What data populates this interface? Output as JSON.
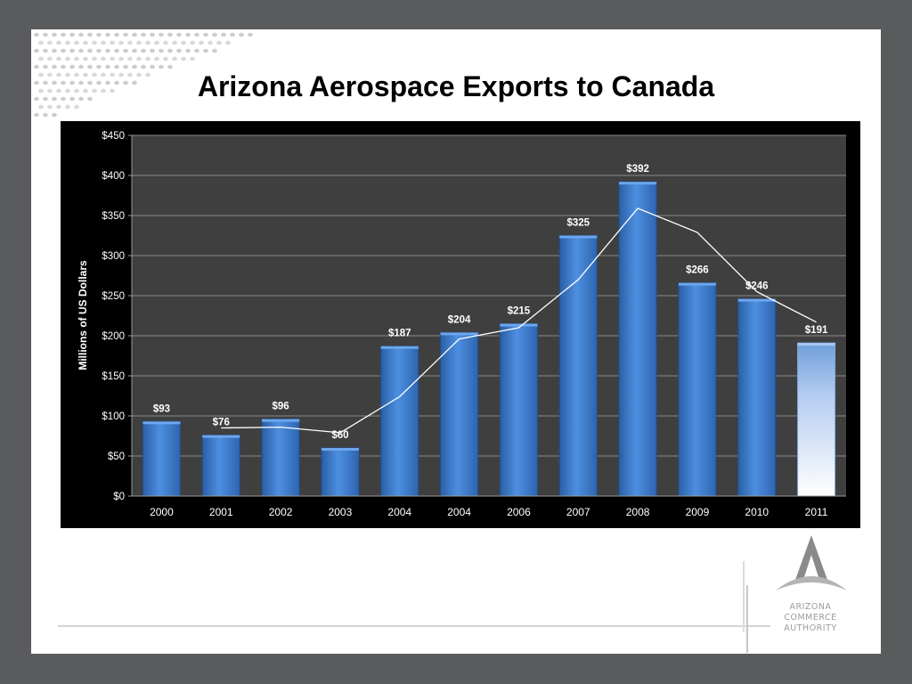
{
  "slide": {
    "title": "Arizona Aerospace Exports to Canada"
  },
  "logo": {
    "lines": [
      "ARIZONA",
      "COMMERCE",
      "AUTHORITY"
    ]
  },
  "colors": {
    "frame": "#5a5b5d",
    "chart_background": "#3f3f3f",
    "bar": "#3e7fce",
    "highlight_bar": "#e8f0fc",
    "trend_line": "#ffffff",
    "gridline": "#8a8a8a"
  },
  "chart_data": {
    "type": "bar",
    "title": "",
    "xlabel": "",
    "ylabel": "Millions of US Dollars",
    "categories": [
      "2000",
      "2001",
      "2002",
      "2003",
      "2004",
      "2004",
      "2006",
      "2007",
      "2008",
      "2009",
      "2010",
      "2011"
    ],
    "series": [
      {
        "type": "bar",
        "values": [
          93,
          76,
          96,
          60,
          187,
          204,
          215,
          325,
          392,
          266,
          246,
          191
        ],
        "data_labels": [
          "$93",
          "$76",
          "$96",
          "$60",
          "$187",
          "$204",
          "$215",
          "$325",
          "$392",
          "$266",
          "$246",
          "$191"
        ],
        "highlight_last": true
      },
      {
        "type": "line",
        "values": [
          null,
          85,
          86,
          79,
          124,
          196,
          210,
          270,
          359,
          329,
          255,
          217
        ]
      }
    ],
    "ylim": [
      0,
      450
    ],
    "yticks": [
      0,
      50,
      100,
      150,
      200,
      250,
      300,
      350,
      400,
      450
    ],
    "ytick_labels": [
      "$0",
      "$50",
      "$100",
      "$150",
      "$200",
      "$250",
      "$300",
      "$350",
      "$400",
      "$450"
    ],
    "grid": true,
    "legend": "none"
  }
}
